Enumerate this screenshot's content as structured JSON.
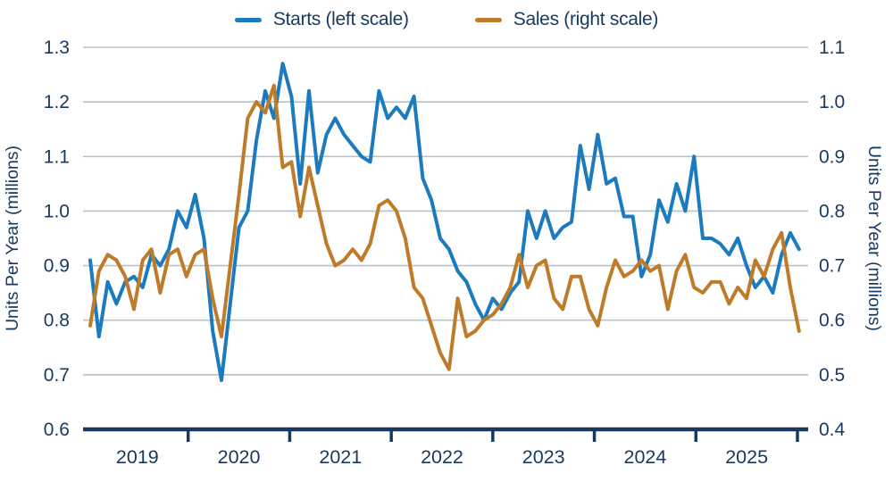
{
  "legend": {
    "starts_label": "Starts (left scale)",
    "sales_label": "Sales (right scale)"
  },
  "colors": {
    "starts": "#1b7bbe",
    "sales": "#be7b29",
    "text": "#17395f",
    "axis": "#17395f",
    "gridline": "#b8c2cb",
    "background": "#ffffff"
  },
  "chart_data": {
    "type": "line",
    "title": "",
    "grid": true,
    "legend_position": "top-center",
    "x_axis": {
      "years": [
        "2019",
        "2020",
        "2021",
        "2022",
        "2023",
        "2024",
        "2025"
      ],
      "start_month": "2019-01",
      "end_month": "2025-10"
    },
    "left_axis": {
      "label": "Units Per Year (millions)",
      "min": 0.6,
      "max": 1.3,
      "ticks": [
        1.3,
        1.2,
        1.1,
        1.0,
        0.9,
        0.8,
        0.7,
        0.6
      ]
    },
    "right_axis": {
      "label": "Units Per Year (millions)",
      "min": 0.4,
      "max": 1.1,
      "ticks": [
        1.1,
        1.0,
        0.9,
        0.8,
        0.7,
        0.6,
        0.5,
        0.4
      ]
    },
    "series": [
      {
        "name": "Starts (left scale)",
        "axis": "left",
        "color": "#1b7bbe",
        "values": [
          0.91,
          0.77,
          0.87,
          0.83,
          0.87,
          0.88,
          0.86,
          0.92,
          0.9,
          0.93,
          1.0,
          0.97,
          1.03,
          0.95,
          0.78,
          0.69,
          0.83,
          0.97,
          1.0,
          1.13,
          1.22,
          1.17,
          1.27,
          1.21,
          1.05,
          1.22,
          1.07,
          1.14,
          1.17,
          1.14,
          1.12,
          1.1,
          1.09,
          1.22,
          1.17,
          1.19,
          1.17,
          1.21,
          1.06,
          1.02,
          0.95,
          0.93,
          0.89,
          0.87,
          0.83,
          0.8,
          0.84,
          0.82,
          0.85,
          0.87,
          1.0,
          0.95,
          1.0,
          0.95,
          0.97,
          0.98,
          1.12,
          1.04,
          1.14,
          1.05,
          1.06,
          0.99,
          0.99,
          0.88,
          0.92,
          1.02,
          0.98,
          1.05,
          1.0,
          1.1,
          0.95,
          0.95,
          0.94,
          0.92,
          0.95,
          0.9,
          0.86,
          0.88,
          0.85,
          0.92,
          0.96,
          0.93
        ]
      },
      {
        "name": "Sales (right scale)",
        "axis": "right",
        "color": "#be7b29",
        "values": [
          0.59,
          0.69,
          0.72,
          0.71,
          0.68,
          0.62,
          0.71,
          0.73,
          0.65,
          0.72,
          0.73,
          0.68,
          0.72,
          0.73,
          0.64,
          0.57,
          0.7,
          0.83,
          0.97,
          1.0,
          0.98,
          1.03,
          0.88,
          0.89,
          0.79,
          0.88,
          0.81,
          0.74,
          0.7,
          0.71,
          0.73,
          0.71,
          0.74,
          0.81,
          0.82,
          0.8,
          0.75,
          0.66,
          0.64,
          0.59,
          0.54,
          0.51,
          0.64,
          0.57,
          0.58,
          0.6,
          0.61,
          0.63,
          0.66,
          0.72,
          0.66,
          0.7,
          0.71,
          0.64,
          0.62,
          0.68,
          0.68,
          0.62,
          0.59,
          0.66,
          0.71,
          0.68,
          0.69,
          0.71,
          0.69,
          0.7,
          0.62,
          0.69,
          0.72,
          0.66,
          0.65,
          0.67,
          0.67,
          0.63,
          0.66,
          0.64,
          0.71,
          0.68,
          0.73,
          0.76,
          0.66,
          0.58
        ]
      }
    ]
  }
}
